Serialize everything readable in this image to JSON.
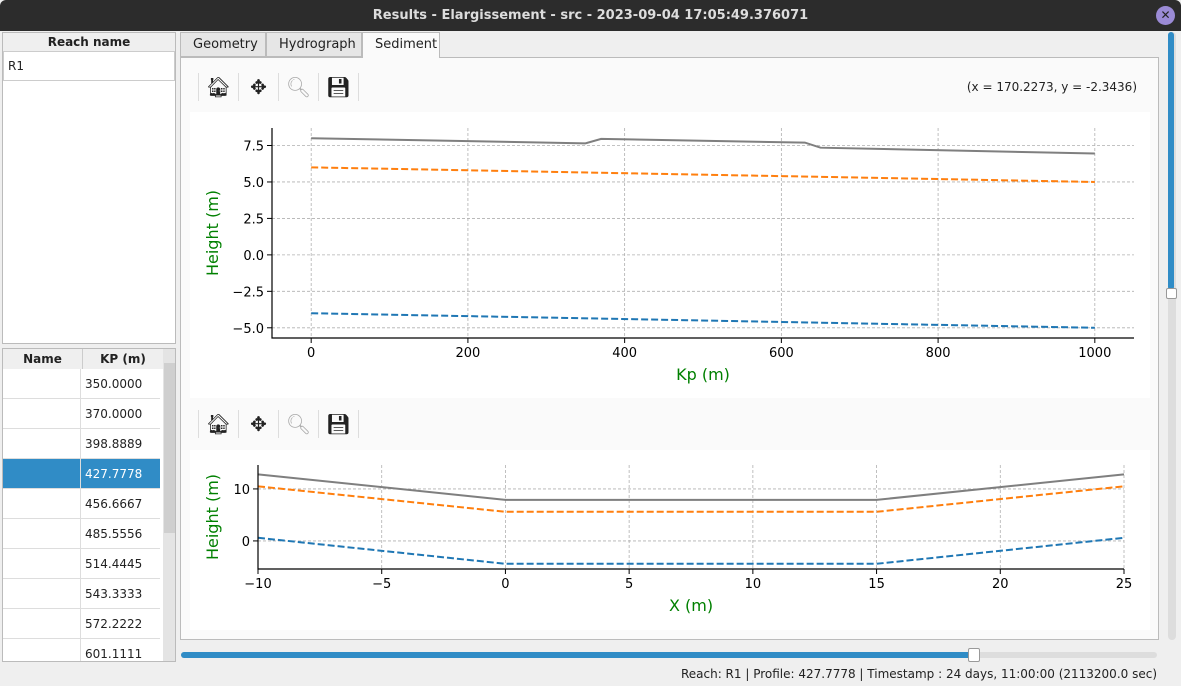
{
  "window": {
    "title": "Results - Elargissement - src - 2023-09-04 17:05:49.376071"
  },
  "reach_list": {
    "header": "Reach name",
    "items": [
      "R1"
    ]
  },
  "profile_table": {
    "headers": [
      "Name",
      "KP (m)"
    ],
    "rows": [
      [
        "",
        "350.0000"
      ],
      [
        "",
        "370.0000"
      ],
      [
        "",
        "398.8889"
      ],
      [
        "",
        "427.7778"
      ],
      [
        "",
        "456.6667"
      ],
      [
        "",
        "485.5556"
      ],
      [
        "",
        "514.4445"
      ],
      [
        "",
        "543.3333"
      ],
      [
        "",
        "572.2222"
      ],
      [
        "",
        "601.1111"
      ]
    ],
    "selected_index": 3
  },
  "tabs": [
    {
      "label": "Geometry"
    },
    {
      "label": "Hydrograph"
    },
    {
      "label": "Sediment",
      "active": true
    }
  ],
  "toolbar": {
    "icons": [
      "home-icon",
      "pan-icon",
      "zoom-icon",
      "save-icon"
    ],
    "coords": "(x = 170.2273,   y = -2.3436)"
  },
  "timestamp_slider": {
    "value_fraction": 0.83
  },
  "vertical_scrollbar": {
    "value_fraction": 0.43
  },
  "status": "Reach: R1 | Profile: 427.7778 | Timestamp : 24 days, 11:00:00 (2113200.0 sec)",
  "colors": {
    "accent": "#308cc6",
    "gray": "#7f7f7f",
    "orange": "#ff7f0e",
    "blue": "#1f77b4",
    "label": "#008000"
  },
  "chart_data": [
    {
      "type": "line",
      "xlabel": "Kp (m)",
      "ylabel": "Height (m)",
      "xlim": [
        -50,
        1050
      ],
      "ylim": [
        -5.7,
        8.7
      ],
      "grid": true,
      "xticks": [
        0,
        200,
        400,
        600,
        800,
        1000
      ],
      "yticks": [
        -5.0,
        -2.5,
        0.0,
        2.5,
        5.0,
        7.5
      ],
      "series": [
        {
          "color": "#7f7f7f",
          "style": "solid",
          "x": [
            0,
            350,
            370,
            630,
            650,
            1000
          ],
          "y": [
            8.0,
            7.65,
            7.95,
            7.7,
            7.35,
            6.95
          ]
        },
        {
          "color": "#ff7f0e",
          "style": "dashed",
          "x": [
            0,
            1000
          ],
          "y": [
            6.0,
            5.0
          ]
        },
        {
          "color": "#1f77b4",
          "style": "dashed",
          "x": [
            0,
            1000
          ],
          "y": [
            -4.0,
            -5.0
          ]
        }
      ]
    },
    {
      "type": "line",
      "xlabel": "X (m)",
      "ylabel": "Height (m)",
      "xlim": [
        -10,
        25
      ],
      "ylim": [
        -5.4,
        14.6
      ],
      "grid": true,
      "xticks": [
        -10,
        -5,
        0,
        5,
        10,
        15,
        20,
        25
      ],
      "yticks": [
        0,
        10
      ],
      "series": [
        {
          "color": "#7f7f7f",
          "style": "solid",
          "x": [
            -10,
            0,
            15,
            25
          ],
          "y": [
            12.8,
            7.9,
            7.9,
            12.8
          ]
        },
        {
          "color": "#ff7f0e",
          "style": "dashed",
          "x": [
            -10,
            0,
            15,
            25
          ],
          "y": [
            10.5,
            5.6,
            5.6,
            10.5
          ]
        },
        {
          "color": "#1f77b4",
          "style": "dashed",
          "x": [
            -10,
            0,
            15,
            25
          ],
          "y": [
            0.6,
            -4.4,
            -4.4,
            0.6
          ]
        }
      ]
    }
  ]
}
